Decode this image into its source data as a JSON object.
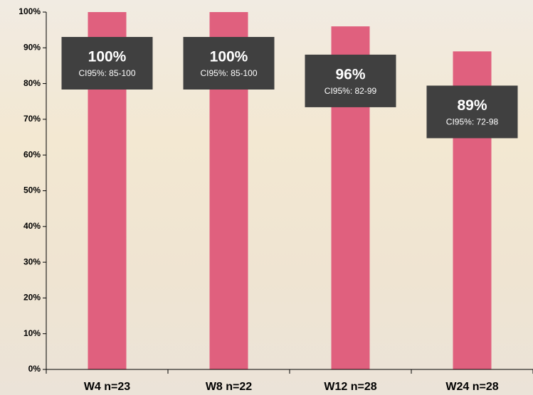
{
  "chart_data": {
    "type": "bar",
    "categories": [
      "W4 n=23",
      "W8 n=22",
      "W12 n=28",
      "W24 n=28"
    ],
    "values": [
      100,
      100,
      96,
      89
    ],
    "value_labels": [
      "100%",
      "100%",
      "96%",
      "89%"
    ],
    "ci_labels": [
      "CI95%: 85-100",
      "CI95%: 85-100",
      "CI95%: 82-99",
      "CI95%: 72-98"
    ],
    "color": "#e0607e",
    "ylim": [
      0,
      100
    ],
    "yticks": [
      {
        "value": 0,
        "label": "0%"
      },
      {
        "value": 10,
        "label": "10%"
      },
      {
        "value": 20,
        "label": "20%"
      },
      {
        "value": 30,
        "label": "30%"
      },
      {
        "value": 40,
        "label": "40%"
      },
      {
        "value": 50,
        "label": "50%"
      },
      {
        "value": 60,
        "label": "60%"
      },
      {
        "value": 70,
        "label": "70%"
      },
      {
        "value": 80,
        "label": "80%"
      },
      {
        "value": 90,
        "label": "90%"
      },
      {
        "value": 100,
        "label": "100%"
      }
    ]
  }
}
